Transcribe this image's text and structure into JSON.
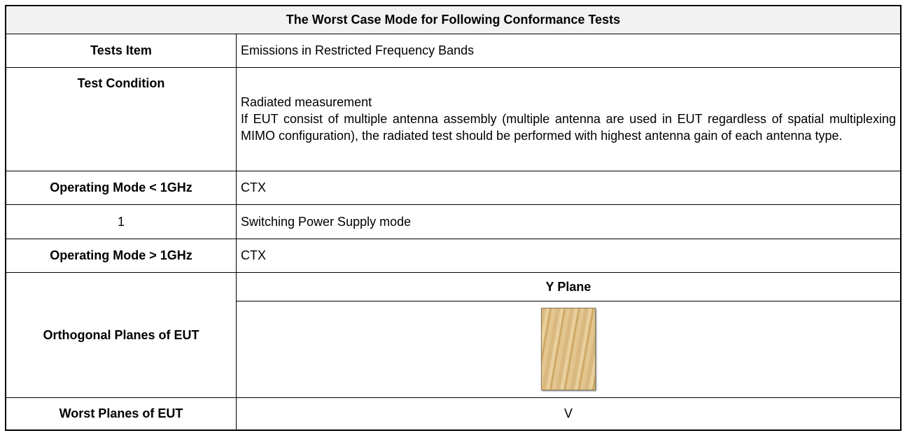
{
  "table": {
    "title": "The Worst Case Mode for Following Conformance Tests",
    "rows": [
      [
        "Tests Item",
        "Emissions in Restricted Frequency Bands"
      ],
      [
        "Test Condition",
        [
          "Radiated measurement",
          "If EUT consist of multiple antenna assembly (multiple antenna are used in EUT regardless of spatial multiplexing MIMO configuration), the radiated test should be performed with highest antenna gain of each antenna type."
        ]
      ],
      [
        "Operating Mode < 1GHz",
        "CTX"
      ],
      [
        "1",
        "Switching Power Supply mode"
      ],
      [
        "Operating Mode > 1GHz",
        "CTX"
      ],
      [
        "Orthogonal Planes of EUT",
        "Y Plane"
      ],
      [
        "Worst Planes of EUT",
        "V"
      ]
    ]
  }
}
